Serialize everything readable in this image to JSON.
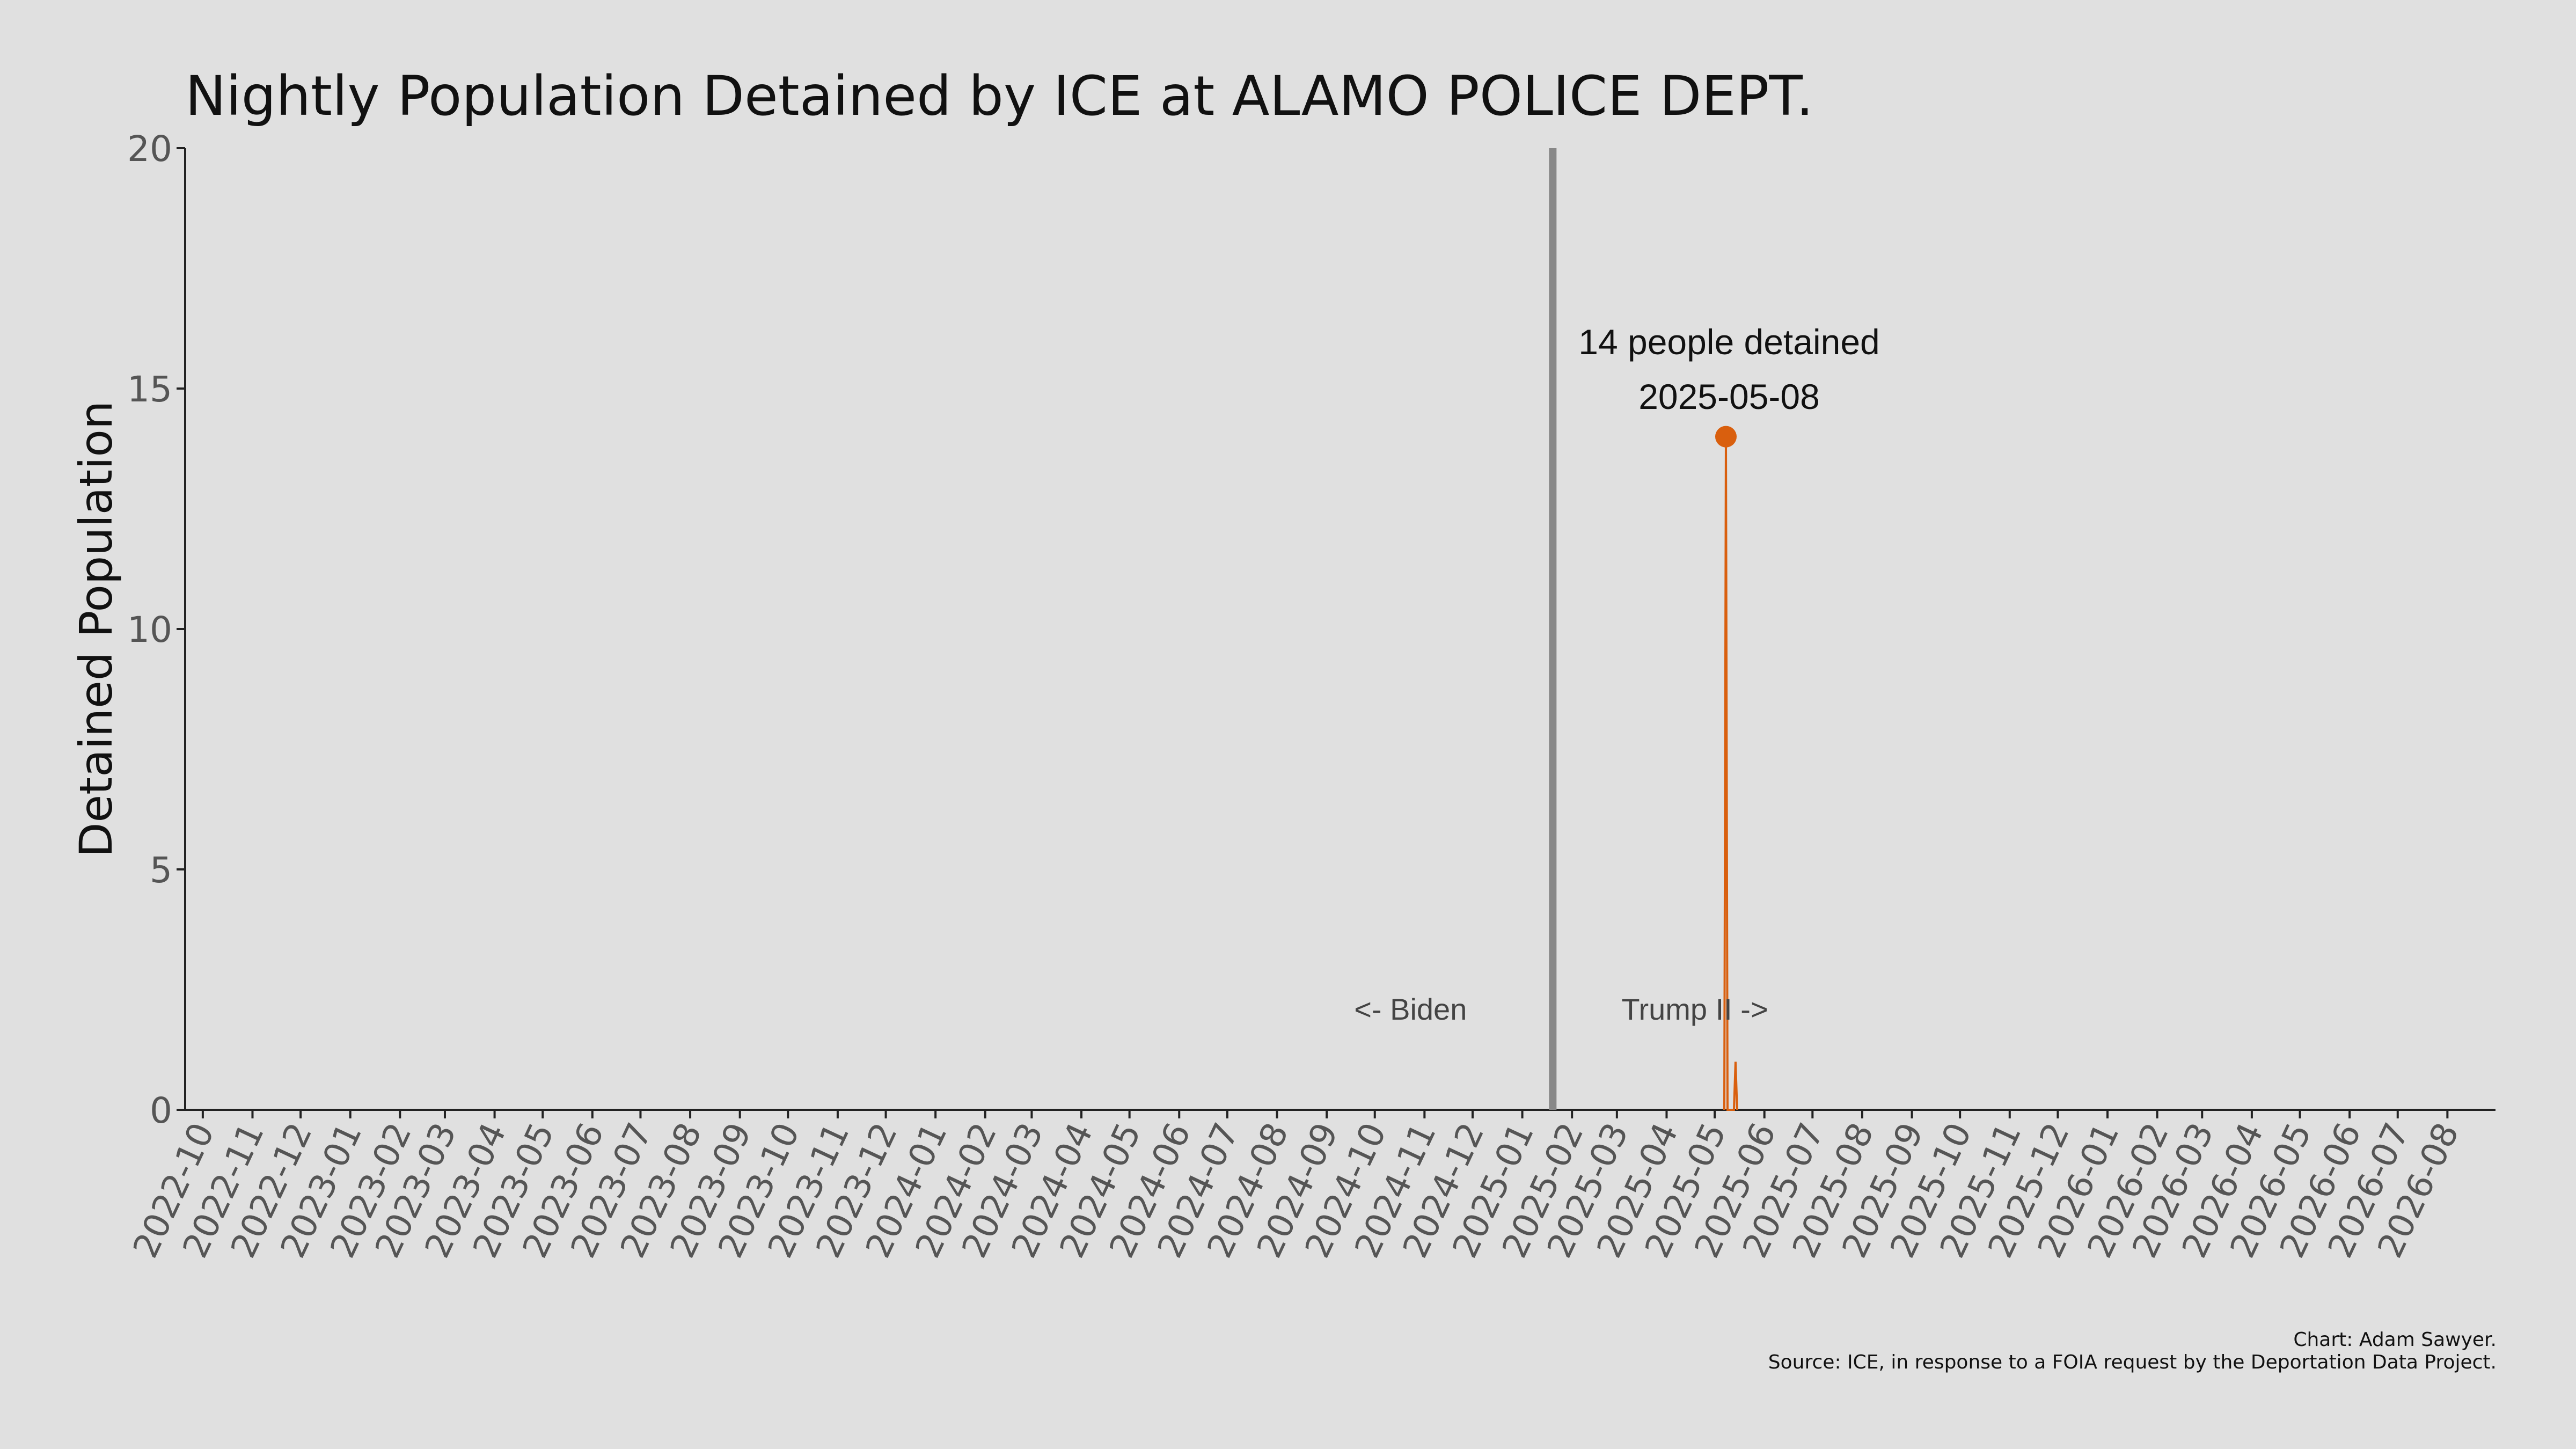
{
  "chart_data": {
    "type": "line",
    "title": "Nightly Population Detained by ICE at ALAMO POLICE DEPT.",
    "ylabel": "Detained Population",
    "xlabel": "",
    "ylim": [
      0,
      20
    ],
    "yticks": [
      "0",
      "5",
      "10",
      "15",
      "20"
    ],
    "xticks": [
      "2022-10",
      "2022-11",
      "2022-12",
      "2023-01",
      "2023-02",
      "2023-03",
      "2023-04",
      "2023-05",
      "2023-06",
      "2023-07",
      "2023-08",
      "2023-09",
      "2023-10",
      "2023-11",
      "2023-12",
      "2024-01",
      "2024-02",
      "2024-03",
      "2024-04",
      "2024-05",
      "2024-06",
      "2024-07",
      "2024-08",
      "2024-09",
      "2024-10",
      "2024-11",
      "2024-12",
      "2025-01",
      "2025-02",
      "2025-03",
      "2025-04",
      "2025-05",
      "2025-06",
      "2025-07",
      "2025-08",
      "2025-09",
      "2025-10",
      "2025-11",
      "2025-12",
      "2026-01",
      "2026-02",
      "2026-03",
      "2026-04",
      "2026-05",
      "2026-06",
      "2026-07",
      "2026-08"
    ],
    "xlim": [
      "2022-09-20",
      "2026-08-31"
    ],
    "grid": false,
    "series": [
      {
        "color": "#d95f0e",
        "points": [
          {
            "x": "2025-05-07",
            "y": 0
          },
          {
            "x": "2025-05-08",
            "y": 14
          },
          {
            "x": "2025-05-09",
            "y": 0
          },
          {
            "x": "2025-05-13",
            "y": 0
          },
          {
            "x": "2025-05-14",
            "y": 1
          },
          {
            "x": "2025-05-15",
            "y": 0
          }
        ]
      }
    ],
    "reference_line": {
      "x": "2025-01-20",
      "color": "#888888"
    },
    "annotations": {
      "peak_label": "14 people detained",
      "peak_date": "2025-05-08",
      "peak_value": 14,
      "left_era": "<- Biden",
      "right_era": "Trump II ->"
    }
  },
  "credits": {
    "author": "Chart: Adam Sawyer.",
    "source": "Source: ICE, in response to a FOIA request by the Deportation Data Project."
  }
}
